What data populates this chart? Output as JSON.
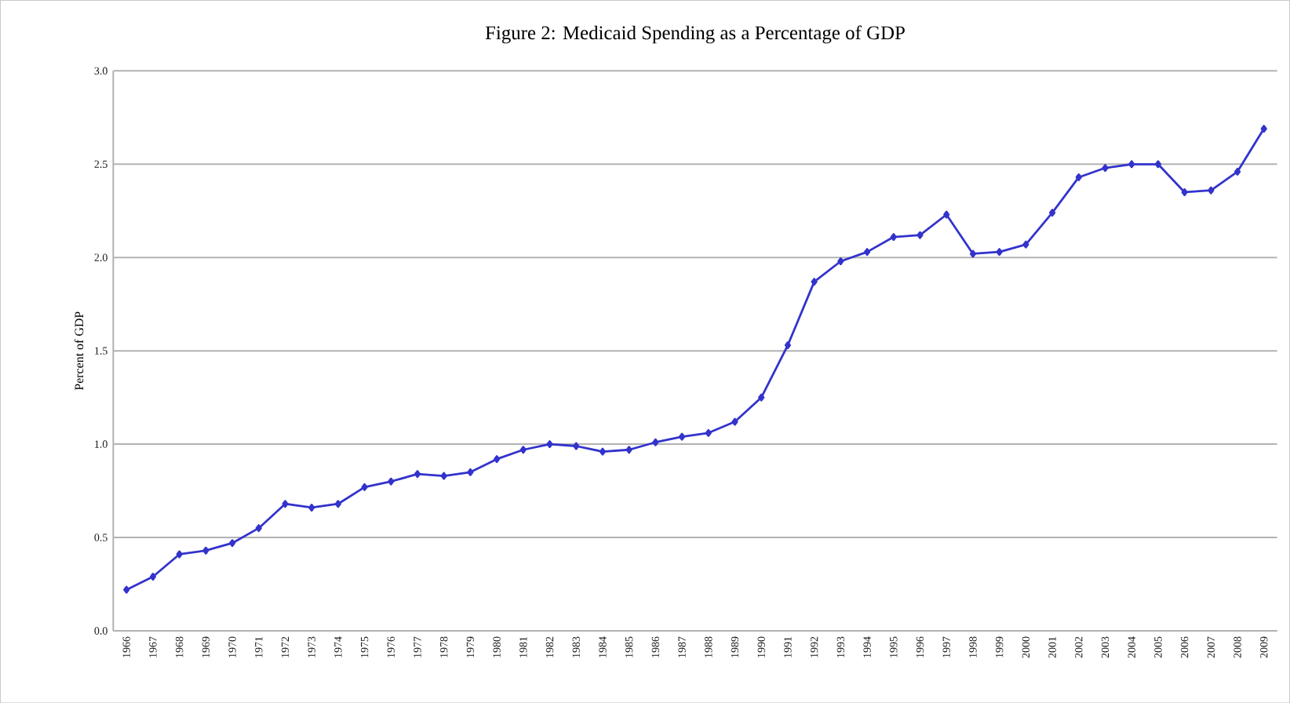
{
  "chart_data": {
    "type": "line",
    "title": "Figure 2:  Medicaid Spending as a Percentage of GDP",
    "ylabel": "Percent of GDP",
    "categories": [
      "1966",
      "1967",
      "1968",
      "1969",
      "1970",
      "1971",
      "1972",
      "1973",
      "1974",
      "1975",
      "1976",
      "1977",
      "1978",
      "1979",
      "1980",
      "1981",
      "1982",
      "1983",
      "1984",
      "1985",
      "1986",
      "1987",
      "1988",
      "1989",
      "1990",
      "1991",
      "1992",
      "1993",
      "1994",
      "1995",
      "1996",
      "1997",
      "1998",
      "1999",
      "2000",
      "2001",
      "2002",
      "2003",
      "2004",
      "2005",
      "2006",
      "2007",
      "2008",
      "2009"
    ],
    "series": [
      {
        "color": "#3333cc",
        "values": [
          0.22,
          0.29,
          0.41,
          0.43,
          0.47,
          0.55,
          0.68,
          0.66,
          0.68,
          0.77,
          0.8,
          0.84,
          0.83,
          0.85,
          0.92,
          0.97,
          1.0,
          0.99,
          0.96,
          0.97,
          1.01,
          1.04,
          1.06,
          1.12,
          1.25,
          1.53,
          1.87,
          1.98,
          2.03,
          2.11,
          2.12,
          2.23,
          2.02,
          2.03,
          2.07,
          2.24,
          2.43,
          2.48,
          2.5,
          2.5,
          2.35,
          2.36,
          2.46,
          2.69
        ]
      }
    ],
    "ylim": [
      0,
      3
    ],
    "yticks": [
      {
        "value": 0,
        "label": "0.0"
      },
      {
        "value": 0.5,
        "label": "0.5"
      },
      {
        "value": 1,
        "label": "1.0"
      },
      {
        "value": 1.5,
        "label": "1.5"
      },
      {
        "value": 2,
        "label": "2.0"
      },
      {
        "value": 2.5,
        "label": "2.5"
      },
      {
        "value": 3,
        "label": "3.0"
      }
    ],
    "grid": "y",
    "marker": "diamond",
    "line_style": "solid"
  }
}
